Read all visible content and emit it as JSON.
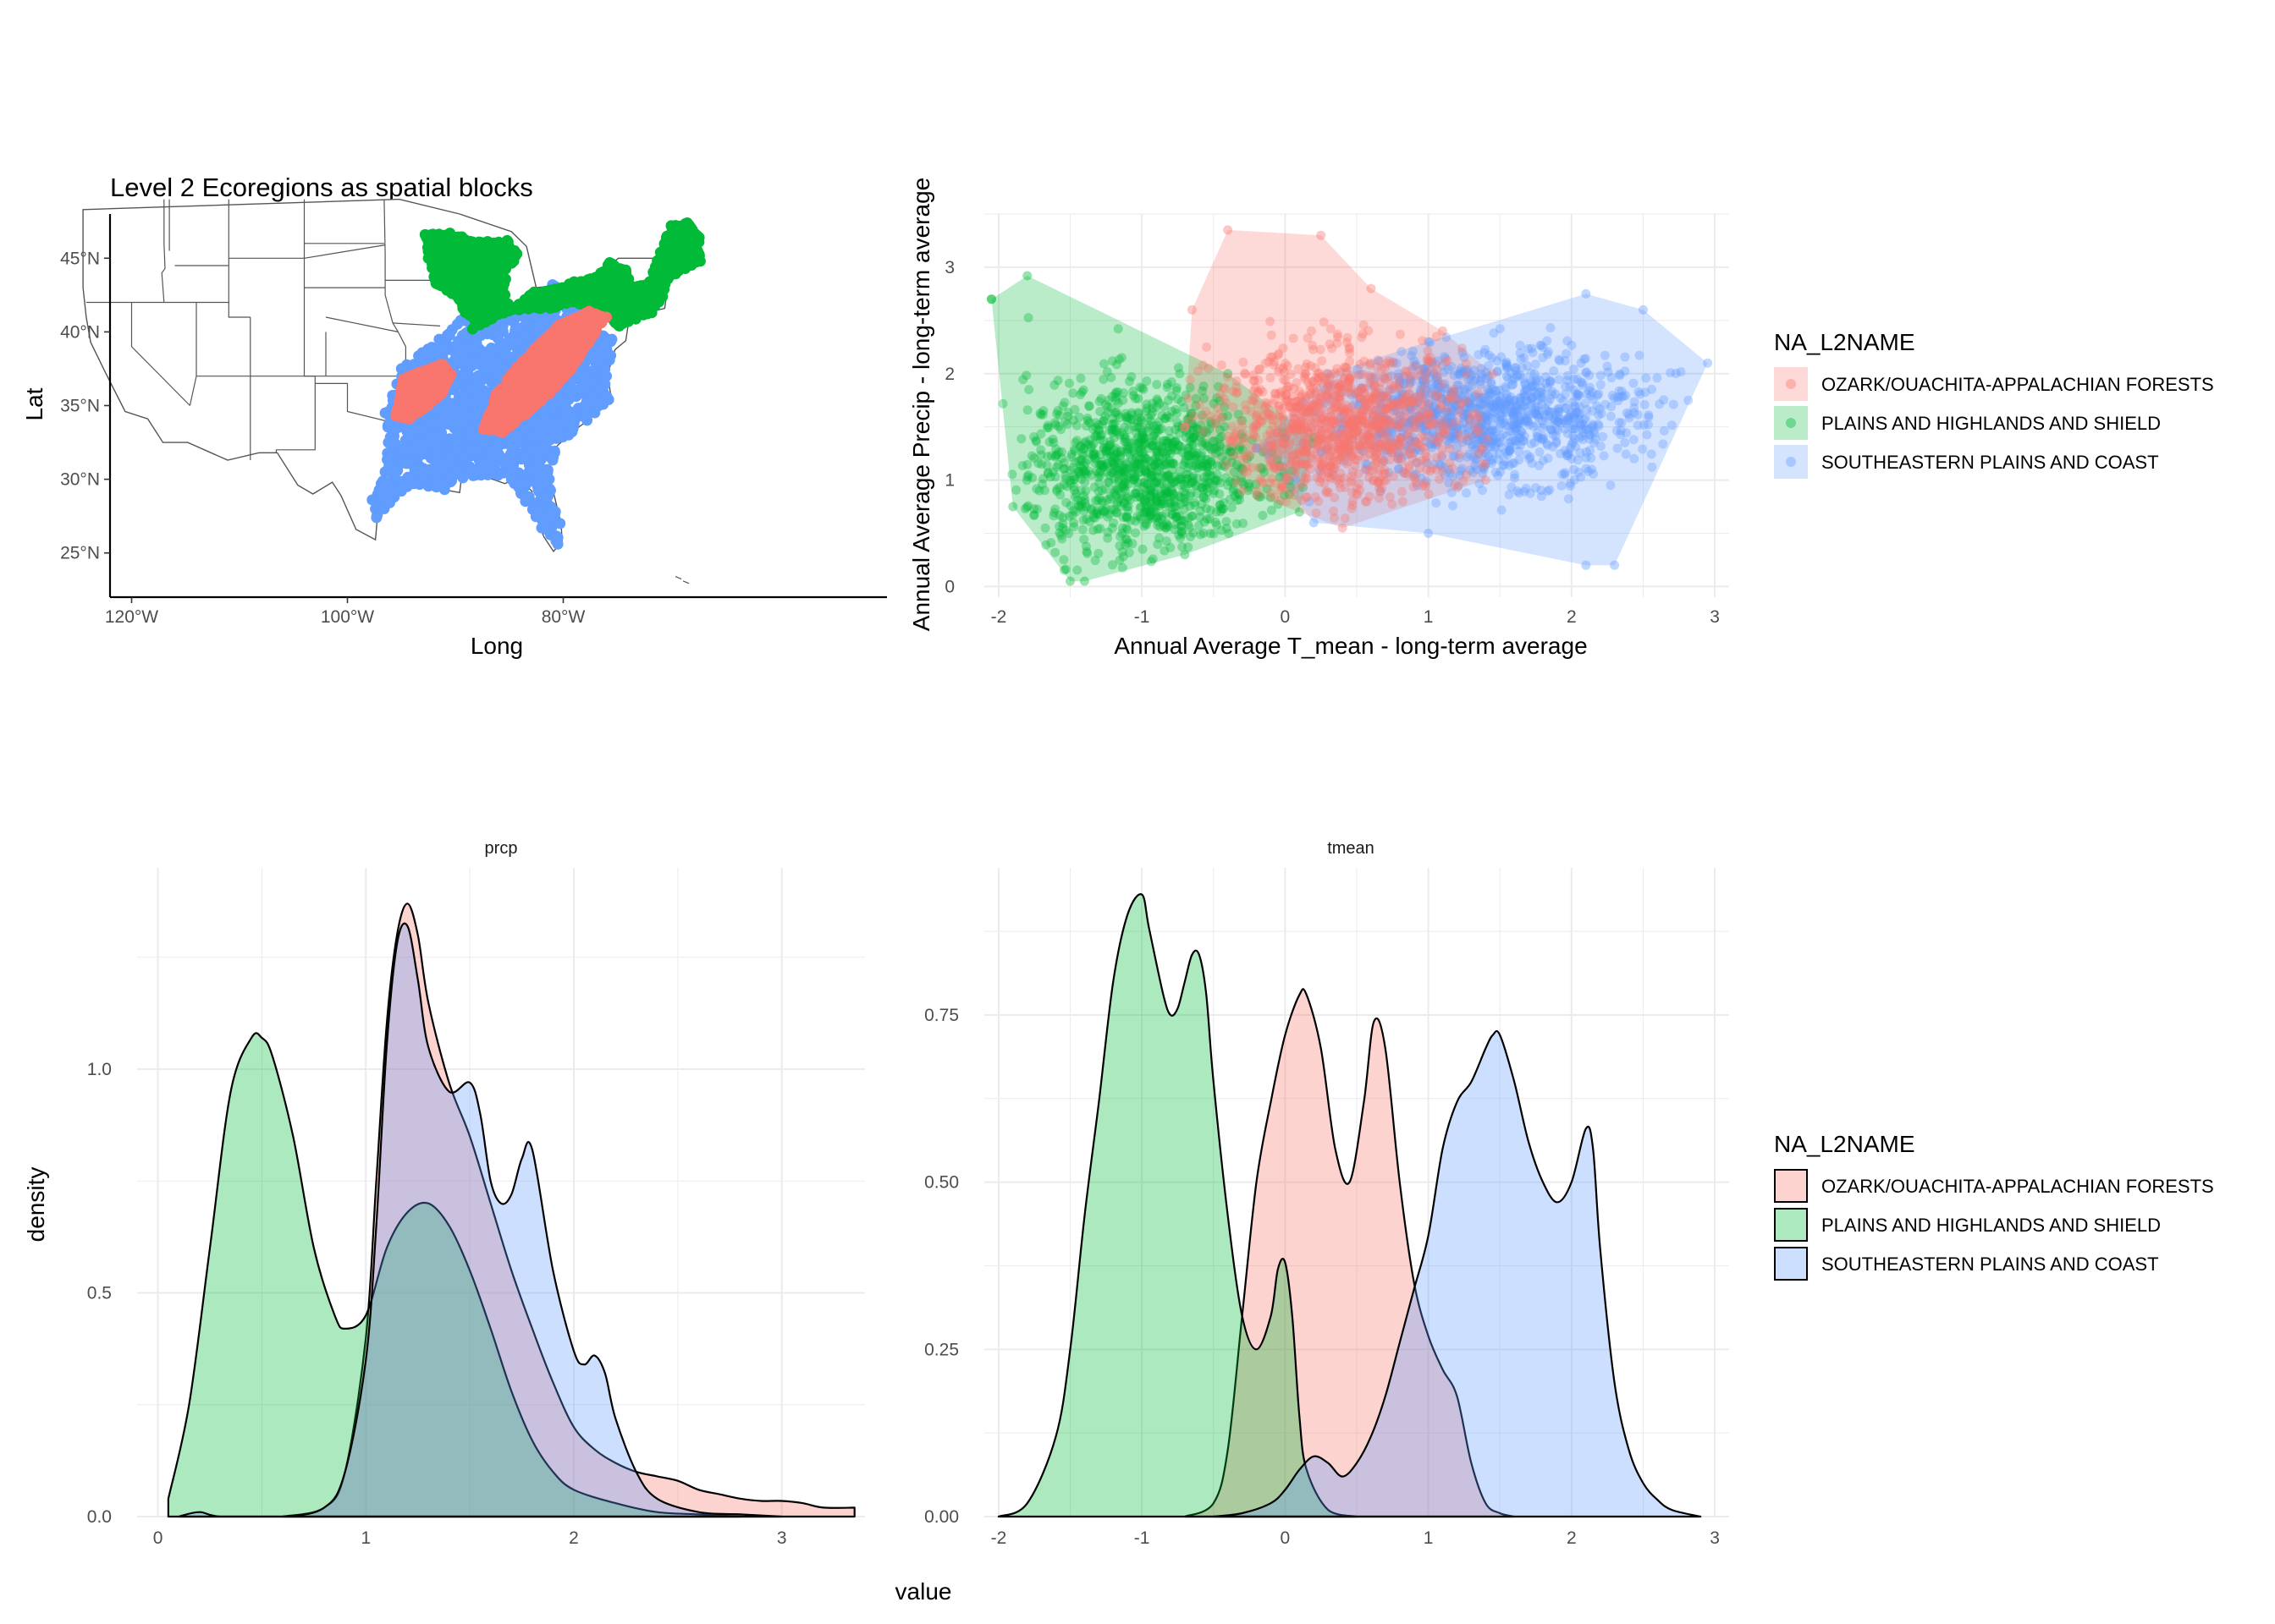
{
  "map": {
    "title": "Level 2 Ecoregions as spatial blocks",
    "xlabel": "Long",
    "ylabel": "Lat",
    "xticks": [
      "120°W",
      "100°W",
      "80°W"
    ],
    "yticks": [
      "25°N",
      "30°N",
      "35°N",
      "40°N",
      "45°N"
    ]
  },
  "scatter": {
    "xlabel": "Annual Average T_mean - long-term average",
    "ylabel": "Annual Average Precip - long-term average",
    "xticks": [
      "-2",
      "-1",
      "0",
      "1",
      "2",
      "3"
    ],
    "yticks": [
      "0",
      "1",
      "2",
      "3"
    ]
  },
  "density": {
    "xlabel": "value",
    "ylabel": "density",
    "panels": [
      "prcp",
      "tmean"
    ],
    "prcp_xticks": [
      "0",
      "1",
      "2",
      "3"
    ],
    "prcp_yticks": [
      "0.0",
      "0.5",
      "1.0"
    ],
    "tmean_xticks": [
      "-2",
      "-1",
      "0",
      "1",
      "2",
      "3"
    ],
    "tmean_yticks": [
      "0.00",
      "0.25",
      "0.50",
      "0.75"
    ]
  },
  "legend": {
    "title": "NA_L2NAME",
    "items": [
      "OZARK/OUACHITA-APPALACHIAN FORESTS",
      "PLAINS AND HIGHLANDS AND SHIELD",
      "SOUTHEASTERN PLAINS AND COAST"
    ]
  },
  "colors": {
    "ozark": "#F8766D",
    "plains": "#00BA38",
    "southeastern": "#619CFF"
  },
  "chart_data": [
    {
      "type": "map",
      "title": "Level 2 Ecoregions as spatial blocks",
      "xlabel": "Long",
      "ylabel": "Lat",
      "xlim": [
        -122,
        -50
      ],
      "ylim": [
        22,
        48
      ],
      "series": [
        {
          "name": "OZARK/OUACHITA-APPALACHIAN FORESTS",
          "regions": [
            "Ozark/Ouachita highlands",
            "Appalachian ridge"
          ]
        },
        {
          "name": "PLAINS AND HIGHLANDS AND SHIELD",
          "regions": [
            "Great Lakes / upper Midwest",
            "Northeast / New England"
          ]
        },
        {
          "name": "SOUTHEASTERN PLAINS AND COAST",
          "regions": [
            "Southeastern plains and Gulf/Atlantic coast"
          ]
        }
      ]
    },
    {
      "type": "scatter",
      "xlabel": "Annual Average T_mean - long-term average",
      "ylabel": "Annual Average Precip - long-term average",
      "xlim": [
        -2.1,
        3.1
      ],
      "ylim": [
        -0.1,
        3.5
      ],
      "series": [
        {
          "name": "OZARK/OUACHITA-APPALACHIAN FORESTS",
          "hull": [
            [
              -0.7,
              1.5
            ],
            [
              -0.65,
              2.6
            ],
            [
              -0.4,
              3.35
            ],
            [
              0.25,
              3.3
            ],
            [
              0.6,
              2.8
            ],
            [
              1.1,
              2.4
            ],
            [
              1.45,
              2.0
            ],
            [
              1.4,
              1.0
            ],
            [
              0.4,
              0.55
            ],
            [
              -0.3,
              0.9
            ],
            [
              -0.7,
              1.5
            ]
          ],
          "cloud_center": [
            0.4,
            1.5
          ],
          "cloud_spread": [
            0.45,
            0.35
          ]
        },
        {
          "name": "PLAINS AND HIGHLANDS AND SHIELD",
          "hull": [
            [
              -2.05,
              2.7
            ],
            [
              -1.8,
              2.92
            ],
            [
              -0.4,
              2.0
            ],
            [
              0.2,
              1.4
            ],
            [
              0.1,
              0.7
            ],
            [
              -0.7,
              0.3
            ],
            [
              -1.4,
              0.05
            ],
            [
              -1.5,
              0.05
            ],
            [
              -1.9,
              0.75
            ],
            [
              -2.05,
              2.7
            ]
          ],
          "cloud_center": [
            -1.0,
            1.1
          ],
          "cloud_spread": [
            0.4,
            0.4
          ]
        },
        {
          "name": "SOUTHEASTERN PLAINS AND COAST",
          "hull": [
            [
              -0.2,
              1.3
            ],
            [
              0.3,
              2.0
            ],
            [
              1.0,
              2.3
            ],
            [
              2.1,
              2.75
            ],
            [
              2.5,
              2.6
            ],
            [
              2.95,
              2.1
            ],
            [
              2.3,
              0.2
            ],
            [
              2.1,
              0.2
            ],
            [
              1.0,
              0.5
            ],
            [
              0.2,
              0.6
            ],
            [
              -0.2,
              1.3
            ]
          ],
          "cloud_center": [
            1.4,
            1.6
          ],
          "cloud_spread": [
            0.55,
            0.3
          ]
        }
      ]
    },
    {
      "type": "area",
      "panel": "prcp",
      "xlabel": "value",
      "ylabel": "density",
      "xlim": [
        -0.1,
        3.4
      ],
      "ylim": [
        0,
        1.45
      ],
      "series": [
        {
          "name": "OZARK/OUACHITA-APPALACHIAN FORESTS",
          "x": [
            0.6,
            0.8,
            0.9,
            1.0,
            1.05,
            1.1,
            1.15,
            1.2,
            1.25,
            1.3,
            1.4,
            1.5,
            1.6,
            1.7,
            1.8,
            1.9,
            2.0,
            2.1,
            2.2,
            2.3,
            2.4,
            2.5,
            2.6,
            2.7,
            2.8,
            2.9,
            3.0,
            3.1,
            3.2,
            3.35
          ],
          "y": [
            0,
            0.02,
            0.1,
            0.4,
            0.75,
            1.1,
            1.3,
            1.37,
            1.3,
            1.15,
            0.97,
            0.85,
            0.7,
            0.55,
            0.42,
            0.3,
            0.2,
            0.15,
            0.12,
            0.1,
            0.09,
            0.08,
            0.06,
            0.05,
            0.04,
            0.035,
            0.035,
            0.03,
            0.02,
            0.02
          ]
        },
        {
          "name": "PLAINS AND HIGHLANDS AND SHIELD",
          "x": [
            0.05,
            0.15,
            0.25,
            0.35,
            0.45,
            0.5,
            0.55,
            0.65,
            0.75,
            0.85,
            0.9,
            1.0,
            1.1,
            1.2,
            1.3,
            1.4,
            1.5,
            1.6,
            1.7,
            1.8,
            1.9,
            2.0,
            2.2,
            2.4,
            2.6,
            2.8
          ],
          "y": [
            0.04,
            0.25,
            0.6,
            0.95,
            1.07,
            1.07,
            1.03,
            0.85,
            0.6,
            0.45,
            0.42,
            0.45,
            0.6,
            0.68,
            0.7,
            0.65,
            0.55,
            0.42,
            0.28,
            0.17,
            0.1,
            0.06,
            0.03,
            0.01,
            0.005,
            0
          ]
        },
        {
          "name": "SOUTHEASTERN PLAINS AND COAST",
          "x": [
            0.1,
            0.2,
            0.3,
            0.6,
            0.8,
            0.9,
            1.0,
            1.05,
            1.1,
            1.15,
            1.2,
            1.25,
            1.3,
            1.4,
            1.5,
            1.55,
            1.6,
            1.65,
            1.7,
            1.75,
            1.8,
            1.9,
            2.0,
            2.05,
            2.1,
            2.15,
            2.2,
            2.3,
            2.4,
            2.6,
            2.8,
            3.0
          ],
          "y": [
            0,
            0.01,
            0.0,
            0,
            0.02,
            0.1,
            0.35,
            0.65,
            1.05,
            1.28,
            1.32,
            1.2,
            1.05,
            0.95,
            0.97,
            0.9,
            0.75,
            0.7,
            0.72,
            0.8,
            0.82,
            0.55,
            0.37,
            0.34,
            0.36,
            0.32,
            0.22,
            0.1,
            0.04,
            0.01,
            0.005,
            0
          ]
        }
      ]
    },
    {
      "type": "area",
      "panel": "tmean",
      "xlabel": "value",
      "ylabel": "density",
      "xlim": [
        -2.1,
        3.1
      ],
      "ylim": [
        0,
        0.97
      ],
      "series": [
        {
          "name": "OZARK/OUACHITA-APPALACHIAN FORESTS",
          "x": [
            -0.7,
            -0.5,
            -0.4,
            -0.3,
            -0.2,
            -0.1,
            0.0,
            0.1,
            0.15,
            0.25,
            0.35,
            0.45,
            0.55,
            0.62,
            0.7,
            0.8,
            0.9,
            1.0,
            1.1,
            1.2,
            1.3,
            1.4,
            1.5,
            1.6
          ],
          "y": [
            0,
            0.02,
            0.1,
            0.3,
            0.5,
            0.62,
            0.72,
            0.78,
            0.78,
            0.7,
            0.55,
            0.5,
            0.62,
            0.74,
            0.7,
            0.5,
            0.35,
            0.27,
            0.22,
            0.18,
            0.08,
            0.02,
            0.005,
            0
          ]
        },
        {
          "name": "PLAINS AND HIGHLANDS AND SHIELD",
          "x": [
            -2.0,
            -1.8,
            -1.6,
            -1.5,
            -1.4,
            -1.3,
            -1.2,
            -1.1,
            -1.0,
            -0.95,
            -0.85,
            -0.8,
            -0.75,
            -0.7,
            -0.65,
            -0.6,
            -0.55,
            -0.5,
            -0.4,
            -0.3,
            -0.2,
            -0.1,
            -0.05,
            0.0,
            0.05,
            0.1,
            0.15,
            0.3,
            0.5
          ],
          "y": [
            0,
            0.02,
            0.12,
            0.25,
            0.45,
            0.62,
            0.8,
            0.9,
            0.93,
            0.88,
            0.78,
            0.75,
            0.76,
            0.8,
            0.84,
            0.84,
            0.78,
            0.65,
            0.45,
            0.3,
            0.25,
            0.3,
            0.37,
            0.38,
            0.3,
            0.15,
            0.07,
            0.01,
            0
          ]
        },
        {
          "name": "SOUTHEASTERN PLAINS AND COAST",
          "x": [
            -0.5,
            -0.3,
            -0.1,
            0.0,
            0.1,
            0.2,
            0.3,
            0.4,
            0.5,
            0.6,
            0.7,
            0.8,
            0.9,
            1.0,
            1.1,
            1.2,
            1.3,
            1.4,
            1.45,
            1.5,
            1.6,
            1.7,
            1.8,
            1.9,
            2.0,
            2.1,
            2.15,
            2.2,
            2.3,
            2.4,
            2.5,
            2.6,
            2.7,
            2.9
          ],
          "y": [
            0,
            0.005,
            0.02,
            0.04,
            0.07,
            0.09,
            0.08,
            0.06,
            0.08,
            0.12,
            0.18,
            0.26,
            0.34,
            0.42,
            0.55,
            0.62,
            0.65,
            0.7,
            0.72,
            0.72,
            0.65,
            0.56,
            0.5,
            0.47,
            0.5,
            0.58,
            0.55,
            0.4,
            0.2,
            0.1,
            0.05,
            0.025,
            0.01,
            0
          ]
        }
      ]
    }
  ]
}
